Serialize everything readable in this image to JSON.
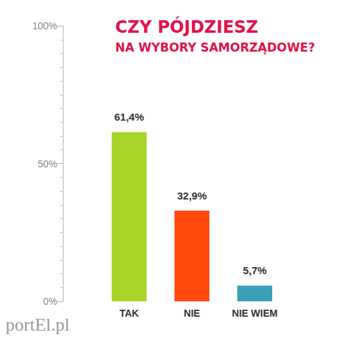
{
  "chart_data": {
    "type": "bar",
    "title": "CZY PÓJDZIESZ",
    "subtitle": "NA WYBORY SAMORZĄDOWE?",
    "categories": [
      "TAK",
      "NIE",
      "NIE WIEM"
    ],
    "values": [
      61.4,
      32.9,
      5.7
    ],
    "value_labels": [
      "61,4%",
      "32,9%",
      "5,7%"
    ],
    "colors": [
      "#a8d42a",
      "#ff4a0c",
      "#3aa0b6"
    ],
    "ylim": [
      0,
      100
    ],
    "yticks": [
      {
        "value": 0,
        "label": "0%"
      },
      {
        "value": 50,
        "label": "50%"
      },
      {
        "value": 100,
        "label": "100%"
      }
    ],
    "grid": false,
    "data_labels": true,
    "annotations": [
      "portEl.pl"
    ]
  }
}
